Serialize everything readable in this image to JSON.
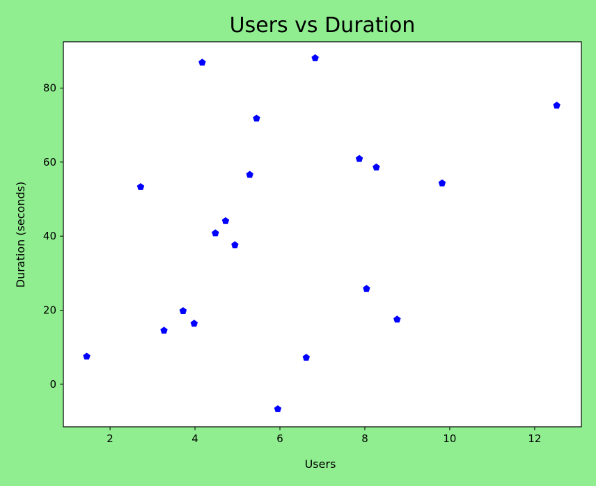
{
  "chart_data": {
    "type": "scatter",
    "title": "Users vs Duration",
    "xlabel": "Users",
    "ylabel": "Duration (seconds)",
    "xlim": [
      0.9,
      13.1
    ],
    "ylim": [
      -11.5,
      92.5
    ],
    "xticks": [
      2,
      4,
      6,
      8,
      10,
      12
    ],
    "yticks": [
      0,
      20,
      40,
      60,
      80
    ],
    "grid": false,
    "marker": "pentagon",
    "marker_color": "#0000FF",
    "background_color": "#90EE90",
    "plot_background_color": "#FFFFFF",
    "series": [
      {
        "points": [
          {
            "x": 1.45,
            "y": 7.5
          },
          {
            "x": 2.72,
            "y": 53.3
          },
          {
            "x": 3.27,
            "y": 14.5
          },
          {
            "x": 3.72,
            "y": 19.8
          },
          {
            "x": 3.98,
            "y": 16.4
          },
          {
            "x": 4.17,
            "y": 86.9
          },
          {
            "x": 4.48,
            "y": 40.8
          },
          {
            "x": 4.72,
            "y": 44.1
          },
          {
            "x": 4.94,
            "y": 37.6
          },
          {
            "x": 5.29,
            "y": 56.6
          },
          {
            "x": 5.45,
            "y": 71.8
          },
          {
            "x": 5.95,
            "y": -6.7
          },
          {
            "x": 6.62,
            "y": 7.2
          },
          {
            "x": 6.83,
            "y": 88.1
          },
          {
            "x": 7.87,
            "y": 60.9
          },
          {
            "x": 8.04,
            "y": 25.8
          },
          {
            "x": 8.27,
            "y": 58.6
          },
          {
            "x": 8.76,
            "y": 17.5
          },
          {
            "x": 9.82,
            "y": 54.3
          },
          {
            "x": 12.52,
            "y": 75.3
          }
        ]
      }
    ]
  }
}
